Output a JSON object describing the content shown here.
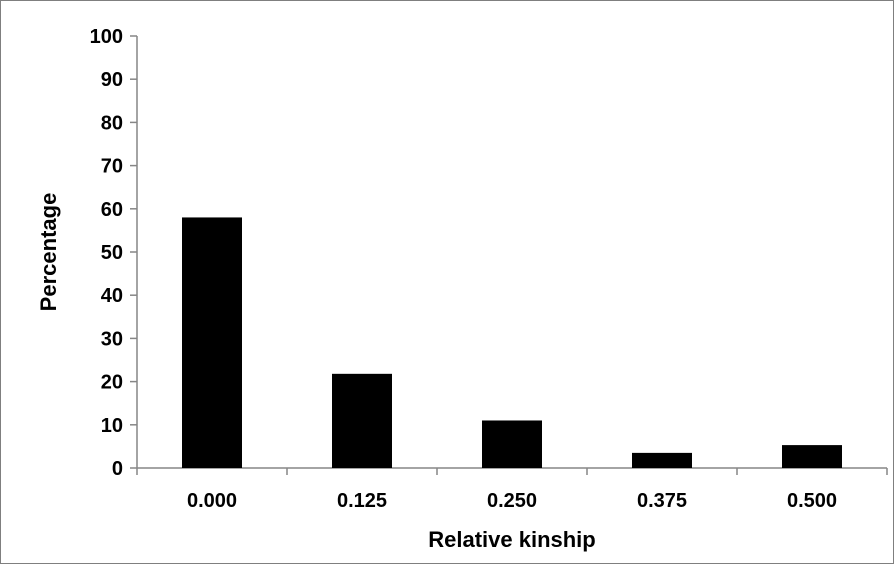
{
  "chart_data": {
    "type": "bar",
    "title": "",
    "xlabel": "Relative kinship",
    "ylabel": "Percentage",
    "categories": [
      "0.000",
      "0.125",
      "0.250",
      "0.375",
      "0.500"
    ],
    "values": [
      58,
      21.8,
      11,
      3.5,
      5.3
    ],
    "ylim": [
      0,
      100
    ],
    "yticks": [
      "0",
      "10",
      "20",
      "30",
      "40",
      "50",
      "60",
      "70",
      "80",
      "90",
      "100"
    ],
    "grid": false,
    "legend": "none",
    "bar_color": "#000000",
    "axis_color": "#868686"
  }
}
